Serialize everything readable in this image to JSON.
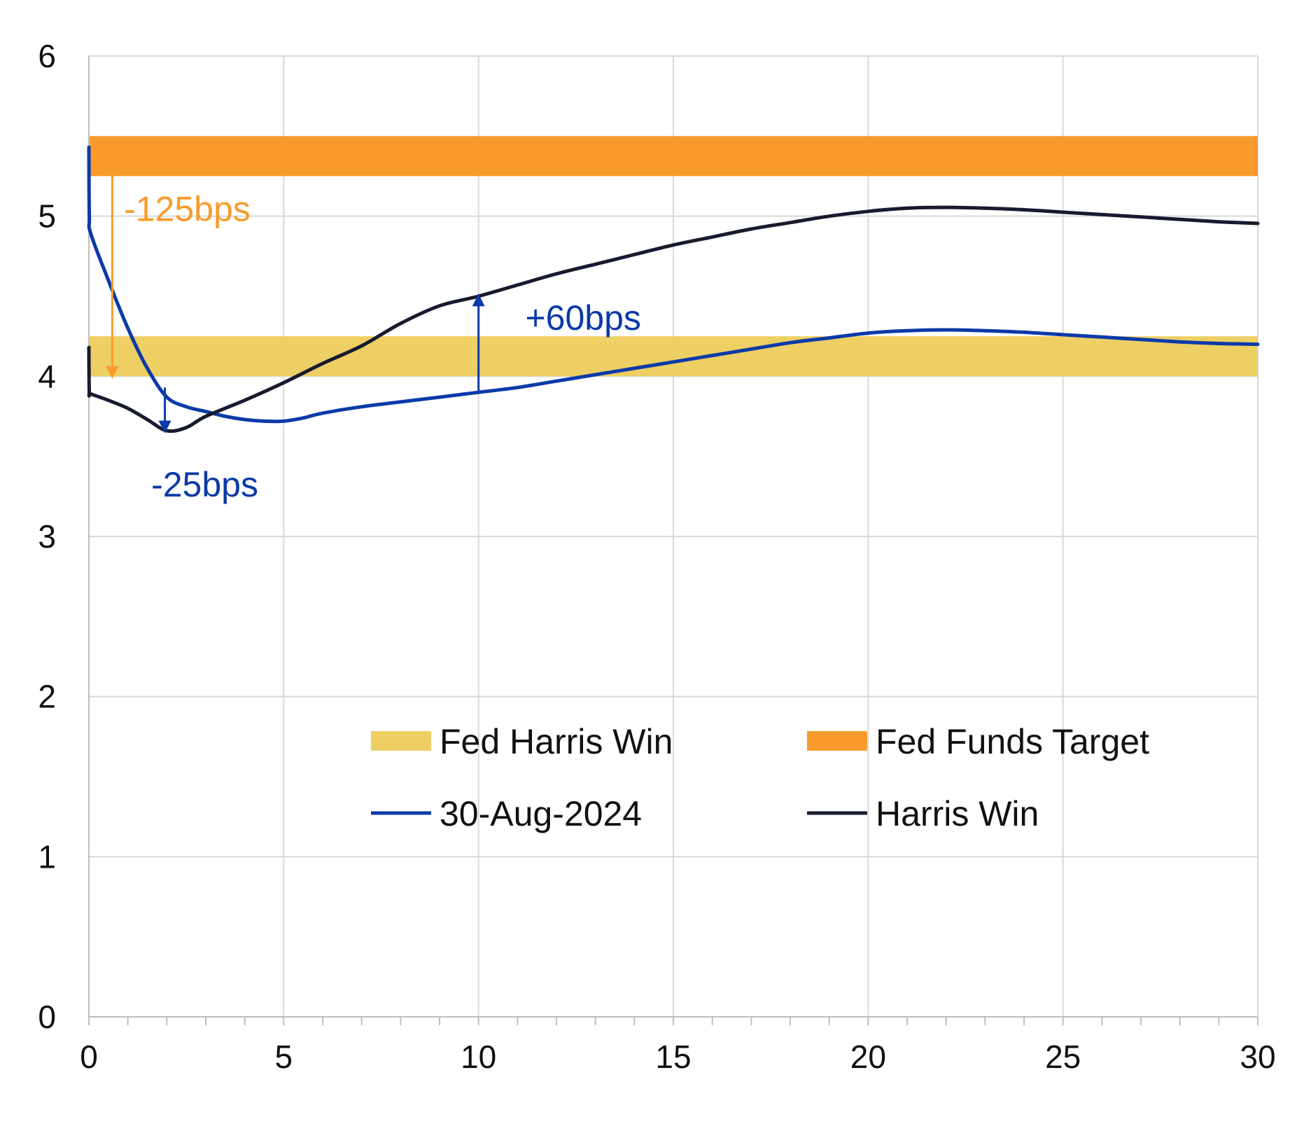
{
  "chart_data": {
    "type": "line",
    "title": "",
    "xlabel": "",
    "ylabel": "",
    "xlim": [
      0,
      30
    ],
    "ylim": [
      0,
      6
    ],
    "x_ticks": [
      "0",
      "5",
      "10",
      "15",
      "20",
      "25",
      "30"
    ],
    "y_ticks": [
      "0",
      "1",
      "2",
      "3",
      "4",
      "5",
      "6"
    ],
    "x_minor_step": 1,
    "grid": true,
    "legend_position": "center-right",
    "bands": [
      {
        "name": "Fed Harris Win",
        "low": 4.0,
        "high": 4.25,
        "color": "#EDCF64"
      },
      {
        "name": "Fed Funds Target",
        "low": 5.25,
        "high": 5.5,
        "color": "#F99B2C"
      }
    ],
    "series": [
      {
        "name": "30-Aug-2024",
        "color": "#0B3AA8",
        "x": [
          0,
          0.01,
          0.05,
          0.5,
          1.0,
          1.5,
          2.0,
          2.5,
          3.0,
          3.5,
          4.0,
          4.5,
          5.0,
          5.5,
          6.0,
          7.0,
          8.0,
          9.0,
          10.0,
          11.0,
          12.0,
          13.0,
          14.0,
          15.0,
          16.0,
          17.0,
          18.0,
          19.0,
          20.0,
          21.0,
          22.0,
          23.0,
          24.0,
          25.0,
          26.0,
          27.0,
          28.0,
          29.0,
          30.0
        ],
        "y": [
          5.43,
          5.0,
          4.89,
          4.6,
          4.3,
          4.05,
          3.87,
          3.81,
          3.78,
          3.75,
          3.73,
          3.72,
          3.72,
          3.74,
          3.77,
          3.81,
          3.84,
          3.87,
          3.9,
          3.93,
          3.97,
          4.01,
          4.05,
          4.09,
          4.13,
          4.17,
          4.21,
          4.24,
          4.27,
          4.285,
          4.29,
          4.285,
          4.275,
          4.26,
          4.245,
          4.23,
          4.215,
          4.205,
          4.2
        ]
      },
      {
        "name": "Harris Win",
        "color": "#181B2E",
        "x": [
          0,
          0.01,
          0.05,
          0.5,
          1.0,
          1.5,
          2.0,
          2.5,
          3.0,
          4.0,
          5.0,
          6.0,
          7.0,
          8.0,
          9.0,
          10.0,
          11.0,
          12.0,
          13.0,
          14.0,
          15.0,
          16.0,
          17.0,
          18.0,
          19.0,
          20.0,
          21.0,
          22.0,
          23.0,
          24.0,
          25.0,
          26.0,
          27.0,
          28.0,
          29.0,
          30.0
        ],
        "y": [
          4.18,
          3.9,
          3.89,
          3.85,
          3.8,
          3.73,
          3.66,
          3.68,
          3.75,
          3.85,
          3.96,
          4.08,
          4.19,
          4.33,
          4.44,
          4.5,
          4.57,
          4.64,
          4.7,
          4.76,
          4.82,
          4.87,
          4.92,
          4.96,
          5.0,
          5.03,
          5.05,
          5.055,
          5.05,
          5.04,
          5.025,
          5.01,
          4.995,
          4.98,
          4.965,
          4.955
        ]
      }
    ],
    "annotations": [
      {
        "text": "-125bps",
        "color": "#F99B2C",
        "x": 0.9,
        "y": 4.97,
        "arrow_x": 0.6,
        "arrow_from": 5.25,
        "arrow_to": 4.0
      },
      {
        "text": "-25bps",
        "color": "#0B3AA8",
        "x": 1.6,
        "y": 3.25,
        "arrow_x": 1.95,
        "arrow_from": 3.93,
        "arrow_to": 3.66
      },
      {
        "text": "+60bps",
        "color": "#0B3AA8",
        "x": 11.2,
        "y": 4.29,
        "arrow_x": 10.0,
        "arrow_from": 3.9,
        "arrow_to": 4.5
      }
    ]
  }
}
